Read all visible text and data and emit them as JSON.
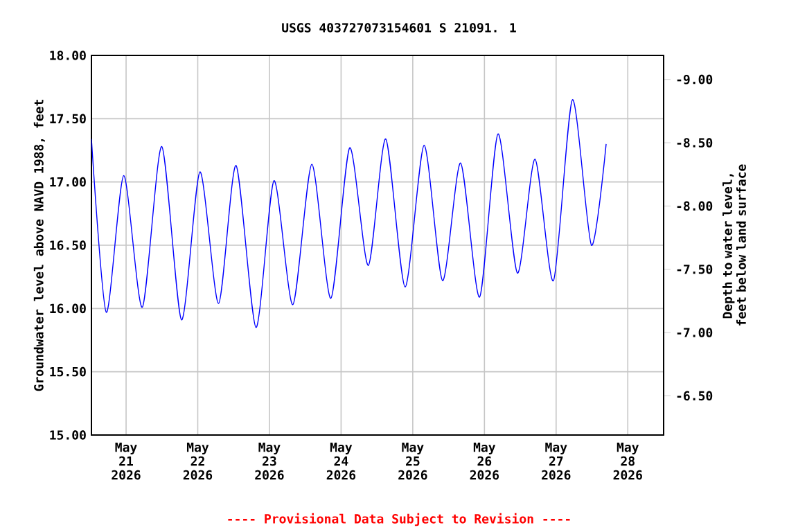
{
  "chart_data": {
    "type": "line",
    "title": "USGS 403727073154601 S 21091. 1",
    "ylabel": "Groundwater level above NAVD 1988, feet",
    "y2label": "Depth to water level, feet below land surface",
    "annotations": [
      "---- Provisional Data Subject to Revision ----"
    ],
    "x": [
      "2026-05-20T12:24",
      "2026-05-20T17:22",
      "2026-05-20T23:13",
      "2026-05-21T05:26",
      "2026-05-21T11:56",
      "2026-05-21T18:34",
      "2026-05-22T00:44",
      "2026-05-22T06:58",
      "2026-05-22T12:49",
      "2026-05-22T19:30",
      "2026-05-23T01:32",
      "2026-05-23T07:50",
      "2026-05-23T14:12",
      "2026-05-23T20:34",
      "2026-05-24T02:53",
      "2026-05-24T09:06",
      "2026-05-24T14:57",
      "2026-05-24T21:26",
      "2026-05-25T03:48",
      "2026-05-25T09:59",
      "2026-05-25T16:01",
      "2026-05-25T22:22",
      "2026-05-26T04:33",
      "2026-05-26T11:03",
      "2026-05-26T16:56",
      "2026-05-26T23:07",
      "2026-05-27T05:28",
      "2026-05-27T11:50",
      "2026-05-27T16:45"
    ],
    "series": [
      {
        "color": "#0000ff",
        "values": [
          17.34,
          15.97,
          17.05,
          16.01,
          17.28,
          15.91,
          17.08,
          16.04,
          17.13,
          15.85,
          17.01,
          16.03,
          17.14,
          16.08,
          17.27,
          16.34,
          17.34,
          16.17,
          17.29,
          16.22,
          17.15,
          16.09,
          17.38,
          16.28,
          17.18,
          16.22,
          17.65,
          16.5,
          17.3
        ]
      }
    ],
    "xlim": [
      "2026-05-20T12:24",
      "2026-05-28T12:00"
    ],
    "xticks": [
      {
        "value": "2026-05-21",
        "label": "May 21 2026"
      },
      {
        "value": "2026-05-22",
        "label": "May 22 2026"
      },
      {
        "value": "2026-05-23",
        "label": "May 23 2026"
      },
      {
        "value": "2026-05-24",
        "label": "May 24 2026"
      },
      {
        "value": "2026-05-25",
        "label": "May 25 2026"
      },
      {
        "value": "2026-05-26",
        "label": "May 26 2026"
      },
      {
        "value": "2026-05-27",
        "label": "May 27 2026"
      },
      {
        "value": "2026-05-28",
        "label": "May 28 2026"
      }
    ],
    "ylim": [
      15,
      18
    ],
    "yticks": [
      {
        "value": 15,
        "label": "15.00"
      },
      {
        "value": 15.5,
        "label": "15.50"
      },
      {
        "value": 16,
        "label": "16.00"
      },
      {
        "value": 16.5,
        "label": "16.50"
      },
      {
        "value": 17,
        "label": "17.00"
      },
      {
        "value": 17.5,
        "label": "17.50"
      },
      {
        "value": 18,
        "label": "18.00"
      }
    ],
    "y2lim": [
      -6.19,
      -9.19
    ],
    "y2ticks": [
      {
        "value": -9,
        "label": "-9.00"
      },
      {
        "value": -8.5,
        "label": "-8.50"
      },
      {
        "value": -8,
        "label": "-8.00"
      },
      {
        "value": -7.5,
        "label": "-7.50"
      },
      {
        "value": -7,
        "label": "-7.00"
      },
      {
        "value": -6.5,
        "label": "-6.50"
      }
    ],
    "grid": true
  }
}
